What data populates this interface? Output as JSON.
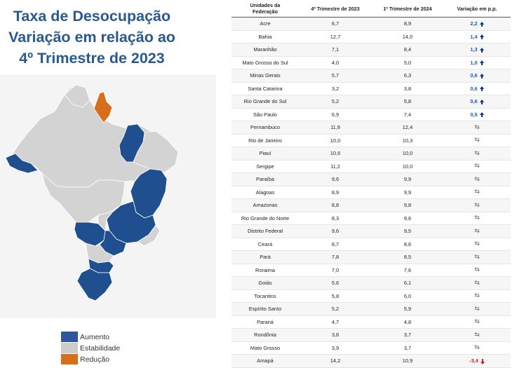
{
  "title": {
    "line1": "Taxa de Desocupação",
    "line2": "Variação em relação ao",
    "line3": "4º Trimestre de 2023"
  },
  "legend": [
    {
      "label": "Aumento",
      "color": "#2f55a0"
    },
    {
      "label": "Estabilidade",
      "color": "#cccccc"
    },
    {
      "label": "Redução",
      "color": "#d56e1d"
    }
  ],
  "map_colors": {
    "aumento": "#1f4f8f",
    "estabilidade": "#d3d3d3",
    "reducao": "#d56e1d"
  },
  "table": {
    "headers": {
      "uf_line1": "Unidades da",
      "uf_line2": "Federação",
      "q4": "4º Trimestre de 2023",
      "q1": "1º Trimestre de 2024",
      "var": "Variação em p.p."
    },
    "rows": [
      {
        "uf": "Acre",
        "q4": "6,7",
        "q1": "8,9",
        "var": "2,2",
        "trend": "up"
      },
      {
        "uf": "Bahia",
        "q4": "12,7",
        "q1": "14,0",
        "var": "1,4",
        "trend": "up"
      },
      {
        "uf": "Maranhão",
        "q4": "7,1",
        "q1": "8,4",
        "var": "1,3",
        "trend": "up"
      },
      {
        "uf": "Mato Grosso do Sul",
        "q4": "4,0",
        "q1": "5,0",
        "var": "1,0",
        "trend": "up"
      },
      {
        "uf": "Minas Gerais",
        "q4": "5,7",
        "q1": "6,3",
        "var": "0,6",
        "trend": "up"
      },
      {
        "uf": "Santa Catarina",
        "q4": "3,2",
        "q1": "3,8",
        "var": "0,6",
        "trend": "up"
      },
      {
        "uf": "Rio Grande do Sul",
        "q4": "5,2",
        "q1": "5,8",
        "var": "0,6",
        "trend": "up"
      },
      {
        "uf": "São Paulo",
        "q4": "6,9",
        "q1": "7,4",
        "var": "0,5",
        "trend": "up"
      },
      {
        "uf": "Pernambuco",
        "q4": "11,9",
        "q1": "12,4",
        "var": "",
        "trend": "stable"
      },
      {
        "uf": "Rio de Janeiro",
        "q4": "10,0",
        "q1": "10,3",
        "var": "",
        "trend": "stable"
      },
      {
        "uf": "Piauí",
        "q4": "10,6",
        "q1": "10,0",
        "var": "",
        "trend": "stable"
      },
      {
        "uf": "Sergipe",
        "q4": "11,2",
        "q1": "10,0",
        "var": "",
        "trend": "stable"
      },
      {
        "uf": "Paraíba",
        "q4": "9,6",
        "q1": "9,9",
        "var": "",
        "trend": "stable"
      },
      {
        "uf": "Alagoas",
        "q4": "8,9",
        "q1": "9,9",
        "var": "",
        "trend": "stable"
      },
      {
        "uf": "Amazonas",
        "q4": "8,8",
        "q1": "9,8",
        "var": "",
        "trend": "stable"
      },
      {
        "uf": "Rio Grande do Norte",
        "q4": "8,3",
        "q1": "9,6",
        "var": "",
        "trend": "stable"
      },
      {
        "uf": "Distrito Federal",
        "q4": "9,6",
        "q1": "9,5",
        "var": "",
        "trend": "stable"
      },
      {
        "uf": "Ceará",
        "q4": "8,7",
        "q1": "8,6",
        "var": "",
        "trend": "stable"
      },
      {
        "uf": "Pará",
        "q4": "7,8",
        "q1": "8,5",
        "var": "",
        "trend": "stable"
      },
      {
        "uf": "Roraima",
        "q4": "7,0",
        "q1": "7,6",
        "var": "",
        "trend": "stable"
      },
      {
        "uf": "Goiás",
        "q4": "5,6",
        "q1": "6,1",
        "var": "",
        "trend": "stable"
      },
      {
        "uf": "Tocantins",
        "q4": "5,8",
        "q1": "6,0",
        "var": "",
        "trend": "stable"
      },
      {
        "uf": "Espírito Santo",
        "q4": "5,2",
        "q1": "5,9",
        "var": "",
        "trend": "stable"
      },
      {
        "uf": "Paraná",
        "q4": "4,7",
        "q1": "4,8",
        "var": "",
        "trend": "stable"
      },
      {
        "uf": "Rondônia",
        "q4": "3,8",
        "q1": "3,7",
        "var": "",
        "trend": "stable"
      },
      {
        "uf": "Mato Grosso",
        "q4": "3,9",
        "q1": "3,7",
        "var": "",
        "trend": "stable"
      },
      {
        "uf": "Amapá",
        "q4": "14,2",
        "q1": "10,9",
        "var": "-3,4",
        "trend": "down"
      }
    ]
  }
}
